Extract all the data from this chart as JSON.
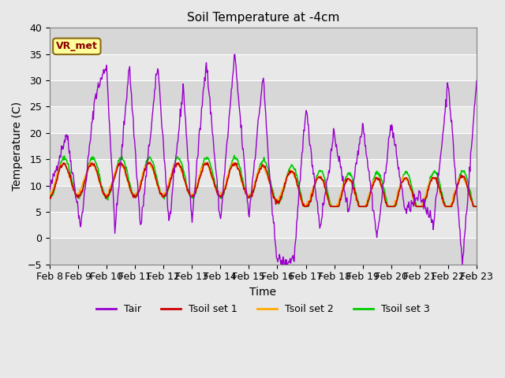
{
  "title": "Soil Temperature at -4cm",
  "xlabel": "Time",
  "ylabel": "Temperature (C)",
  "ylim": [
    -5,
    40
  ],
  "annotation_text": "VR_met",
  "annotation_color": "#8B0000",
  "annotation_bg": "#FFFF99",
  "annotation_border": "#8B6914",
  "background_color": "#E8E8E8",
  "line_colors": {
    "Tair": "#9900CC",
    "Tsoil1": "#CC0000",
    "Tsoil2": "#FFAA00",
    "Tsoil3": "#00CC00"
  },
  "legend_labels": [
    "Tair",
    "Tsoil set 1",
    "Tsoil set 2",
    "Tsoil set 3"
  ],
  "xtick_labels": [
    "Feb 8",
    "Feb 9",
    "Feb 10",
    "Feb 11",
    "Feb 12",
    "Feb 13",
    "Feb 14",
    "Feb 15",
    "Feb 16",
    "Feb 17",
    "Feb 18",
    "Feb 19",
    "Feb 20",
    "Feb 21",
    "Feb 22",
    "Feb 23"
  ],
  "ytick_vals": [
    -5,
    0,
    5,
    10,
    15,
    20,
    25,
    30,
    35,
    40
  ],
  "n_days": 15,
  "points_per_day": 48
}
